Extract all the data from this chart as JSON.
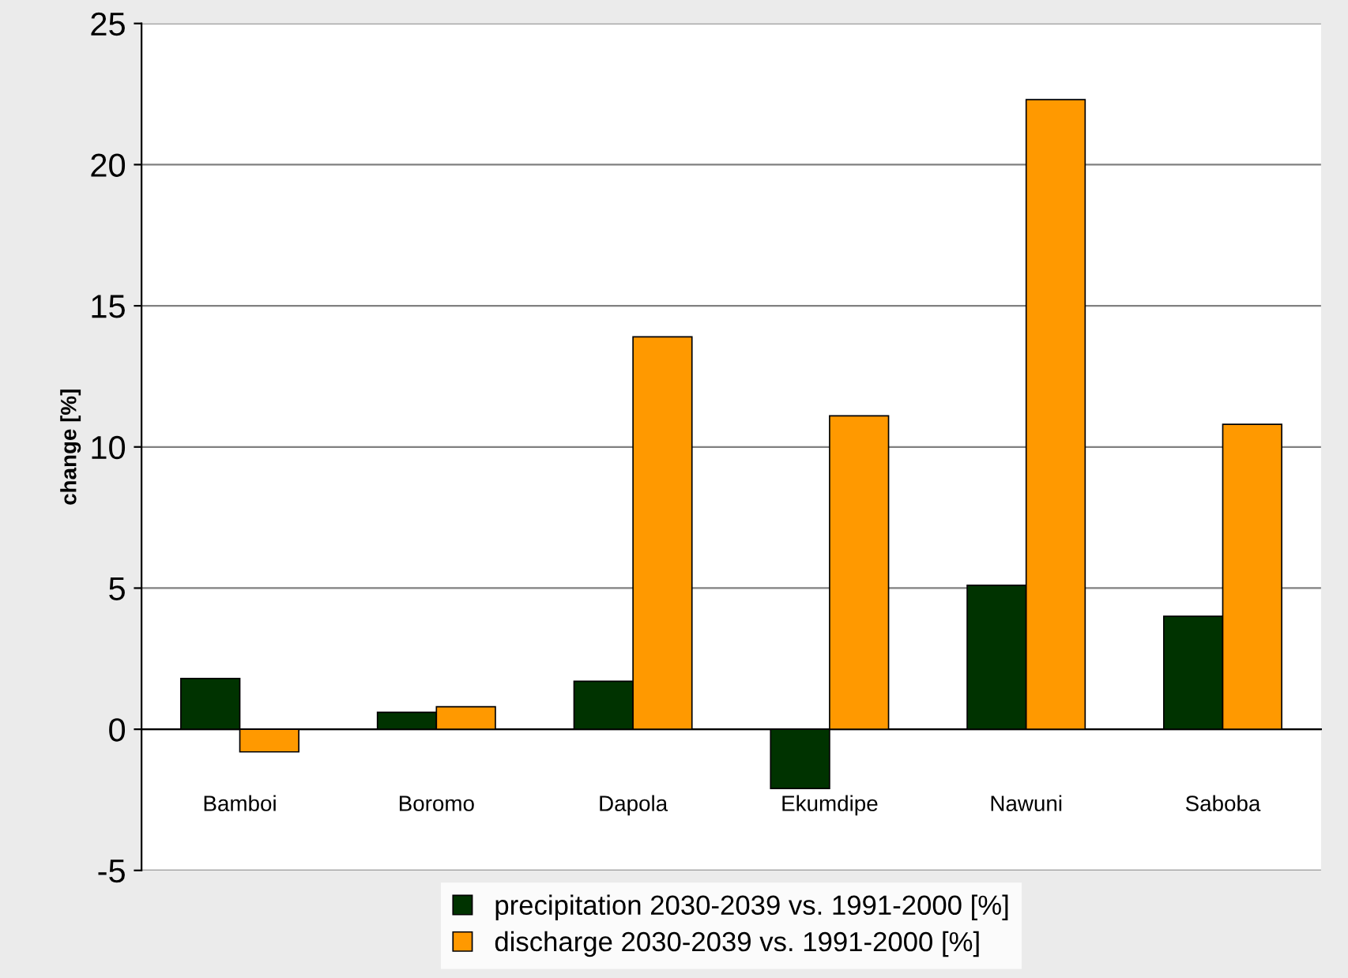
{
  "chart_data": {
    "type": "bar",
    "ylabel": "change [%]",
    "categories": [
      "Bamboi",
      "Boromo",
      "Dapola",
      "Ekumdipe",
      "Nawuni",
      "Saboba"
    ],
    "series": [
      {
        "name": "precipitation 2030-2039 vs. 1991-2000 [%]",
        "color": "#003300",
        "values": [
          1.8,
          0.6,
          1.7,
          -2.1,
          5.1,
          4.0
        ]
      },
      {
        "name": "discharge 2030-2039 vs. 1991-2000 [%]",
        "color": "#ff9900",
        "values": [
          -0.8,
          0.8,
          13.9,
          11.1,
          22.3,
          10.8
        ]
      }
    ],
    "ylim": [
      -5,
      25
    ],
    "yticks": [
      -5,
      0,
      5,
      10,
      15,
      20,
      25
    ],
    "grid": "y",
    "legend": "bottom"
  }
}
